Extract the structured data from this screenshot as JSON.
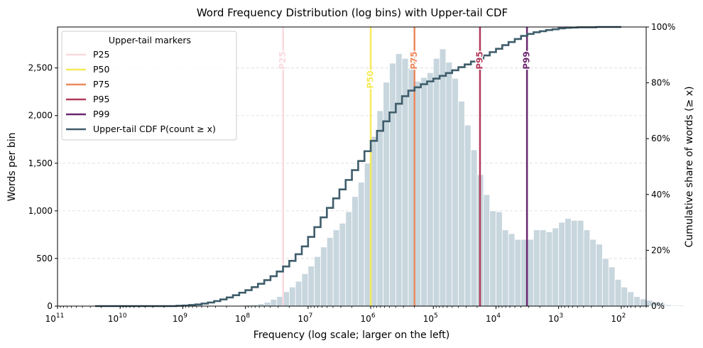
{
  "chart_data": {
    "type": "bar",
    "title": "Word Frequency Distribution (log bins) with Upper-tail CDF",
    "xlabel": "Frequency (log scale; larger on the left)",
    "ylabel": "Words per bin",
    "y2label": "Cumulative share of words (≥ x)",
    "x_scale": "log",
    "x_reversed": true,
    "xlim": [
      100000000000,
      40
    ],
    "ylim": [
      0,
      2930
    ],
    "y2lim": [
      0,
      1
    ],
    "x_ticks": [
      {
        "value": 100000000000,
        "base": "10",
        "exp": "11"
      },
      {
        "value": 10000000000,
        "base": "10",
        "exp": "10"
      },
      {
        "value": 1000000000,
        "base": "10",
        "exp": "9"
      },
      {
        "value": 100000000,
        "base": "10",
        "exp": "8"
      },
      {
        "value": 10000000,
        "base": "10",
        "exp": "7"
      },
      {
        "value": 1000000,
        "base": "10",
        "exp": "6"
      },
      {
        "value": 100000,
        "base": "10",
        "exp": "5"
      },
      {
        "value": 10000,
        "base": "10",
        "exp": "4"
      },
      {
        "value": 1000,
        "base": "10",
        "exp": "3"
      },
      {
        "value": 100,
        "base": "10",
        "exp": "2"
      }
    ],
    "y_ticks": [
      {
        "value": 0,
        "label": "0"
      },
      {
        "value": 500,
        "label": "500"
      },
      {
        "value": 1000,
        "label": "1,000"
      },
      {
        "value": 1500,
        "label": "1,500"
      },
      {
        "value": 2000,
        "label": "2,000"
      },
      {
        "value": 2500,
        "label": "2,500"
      }
    ],
    "y2_ticks": [
      {
        "value": 0,
        "label": "0%"
      },
      {
        "value": 0.2,
        "label": "20%"
      },
      {
        "value": 0.4,
        "label": "40%"
      },
      {
        "value": 0.6,
        "label": "60%"
      },
      {
        "value": 0.8,
        "label": "80%"
      },
      {
        "value": 1.0,
        "label": "100%"
      }
    ],
    "grid": "horizontal dashed",
    "bins_log10_start": 11.0,
    "bins_log10_step": -0.1,
    "counts": [
      0,
      0,
      0,
      0,
      0,
      0,
      0,
      0,
      0,
      0,
      0,
      0,
      0,
      0,
      0,
      0,
      0,
      0,
      0,
      0,
      0,
      0,
      0,
      0,
      0,
      0,
      0,
      0,
      0,
      0,
      10,
      15,
      25,
      40,
      70,
      100,
      150,
      200,
      260,
      340,
      420,
      520,
      620,
      720,
      800,
      870,
      990,
      1150,
      1300,
      1500,
      1780,
      2050,
      2350,
      2550,
      2650,
      2600,
      2500,
      2360,
      2400,
      2450,
      2600,
      2700,
      2560,
      2390,
      2150,
      1900,
      1640,
      1380,
      1170,
      1000,
      990,
      800,
      760,
      700,
      700,
      700,
      800,
      800,
      780,
      820,
      880,
      920,
      900,
      900,
      800,
      700,
      650,
      500,
      410,
      280,
      200,
      150,
      100,
      75,
      60,
      45,
      30,
      15,
      10,
      10
    ],
    "cdf_series": {
      "name": "Upper-tail CDF  P(count ≥ x)",
      "step_x_log10": [
        9.1,
        9.0,
        8.9,
        8.8,
        8.7,
        8.6,
        8.5,
        8.4,
        8.3,
        8.2,
        8.1,
        8.0,
        7.9,
        7.8,
        7.7,
        7.6,
        7.5,
        7.4,
        7.3,
        7.2,
        7.1,
        7.0,
        6.9,
        6.8,
        6.7,
        6.6,
        6.5,
        6.4,
        6.3,
        6.2,
        6.1,
        6.0,
        5.9,
        5.8,
        5.7,
        5.6,
        5.5,
        5.4,
        5.3,
        5.2,
        5.1,
        5.0,
        4.9,
        4.8,
        4.7,
        4.6,
        4.5,
        4.4,
        4.3,
        4.2,
        4.1,
        4.0,
        3.9,
        3.8,
        3.7,
        3.6,
        3.5,
        3.4,
        3.3,
        3.2,
        3.1,
        3.0,
        2.9,
        2.8,
        2.7,
        2.6,
        2.5,
        2.4,
        2.3,
        2.2,
        2.1,
        2.0
      ],
      "step_y": [
        0.001,
        0.002,
        0.004,
        0.006,
        0.009,
        0.013,
        0.018,
        0.024,
        0.031,
        0.039,
        0.048,
        0.057,
        0.068,
        0.08,
        0.093,
        0.107,
        0.124,
        0.142,
        0.162,
        0.186,
        0.214,
        0.248,
        0.283,
        0.318,
        0.352,
        0.386,
        0.418,
        0.452,
        0.487,
        0.52,
        0.555,
        0.592,
        0.628,
        0.662,
        0.694,
        0.725,
        0.752,
        0.772,
        0.784,
        0.795,
        0.805,
        0.815,
        0.825,
        0.835,
        0.845,
        0.856,
        0.866,
        0.876,
        0.887,
        0.898,
        0.91,
        0.922,
        0.935,
        0.946,
        0.957,
        0.968,
        0.975,
        0.981,
        0.985,
        0.989,
        0.992,
        0.995,
        0.997,
        0.998,
        0.999,
        0.999,
        0.999,
        1.0,
        1.0,
        1.0,
        1.0,
        1.0
      ]
    },
    "markers": [
      {
        "name": "P25",
        "value": 25000000,
        "color": "#f9dadf"
      },
      {
        "name": "P50",
        "value": 1000000,
        "color": "#f7ea5b"
      },
      {
        "name": "P75",
        "value": 200000,
        "color": "#ec8a5f"
      },
      {
        "name": "P95",
        "value": 18000,
        "color": "#b13a5c"
      },
      {
        "name": "P99",
        "value": 3200,
        "color": "#6a276f"
      }
    ],
    "legend": {
      "title": "Upper-tail markers",
      "placement": "top-left"
    },
    "colors": {
      "bars": "#c8d6de",
      "bar_edge": "#ffffff",
      "cdf": "#3f5d6b"
    }
  }
}
